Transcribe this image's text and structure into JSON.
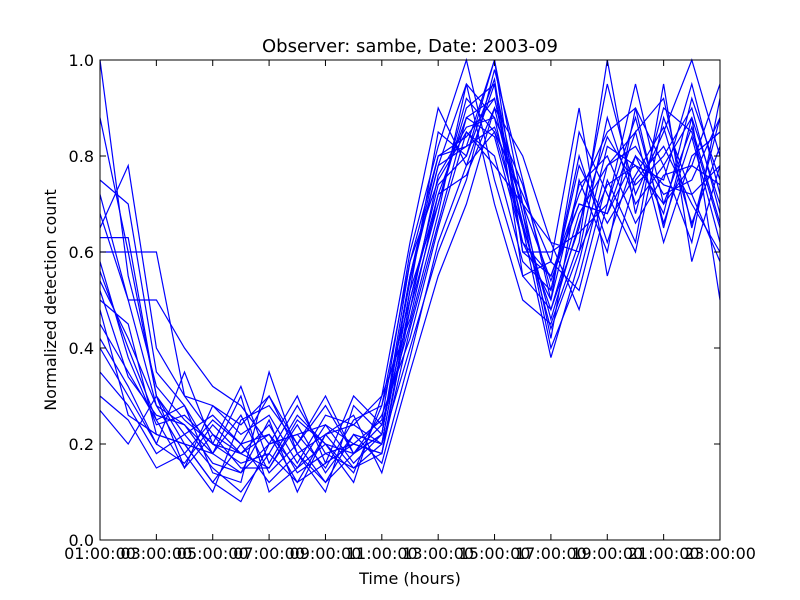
{
  "chart_data": {
    "type": "line",
    "title": "Observer: sambe, Date: 2003-09",
    "xlabel": "Time (hours)",
    "ylabel": "Normalized detection count",
    "xlim": [
      1,
      23
    ],
    "ylim": [
      0.0,
      1.0
    ],
    "x_tick_values": [
      1,
      3,
      5,
      7,
      9,
      11,
      13,
      15,
      17,
      19,
      21,
      23
    ],
    "x_tick_labels": [
      "01:00:00",
      "03:00:00",
      "05:00:00",
      "07:00:00",
      "09:00:00",
      "11:00:00",
      "13:00:00",
      "15:00:00",
      "17:00:00",
      "19:00:00",
      "21:00:00",
      "23:00:00"
    ],
    "y_tick_values": [
      0.0,
      0.2,
      0.4,
      0.6,
      0.8,
      1.0
    ],
    "y_tick_labels": [
      "0.0",
      "0.2",
      "0.4",
      "0.6",
      "0.8",
      "1.0"
    ],
    "grid": false,
    "legend": "none",
    "line_color": "#0000ff",
    "x": [
      1,
      2,
      3,
      4,
      5,
      6,
      7,
      8,
      9,
      10,
      11,
      12,
      13,
      14,
      15,
      16,
      17,
      18,
      19,
      20,
      21,
      22,
      23
    ],
    "series": [
      {
        "values": [
          1.0,
          0.55,
          0.32,
          0.25,
          0.2,
          0.18,
          0.22,
          0.15,
          0.2,
          0.18,
          0.22,
          0.55,
          0.78,
          0.95,
          0.88,
          0.62,
          0.55,
          0.72,
          0.85,
          0.9,
          0.78,
          0.88,
          0.7
        ]
      },
      {
        "values": [
          0.88,
          0.6,
          0.3,
          0.22,
          0.15,
          0.1,
          0.18,
          0.12,
          0.16,
          0.2,
          0.25,
          0.6,
          0.82,
          1.0,
          0.75,
          0.55,
          0.48,
          0.65,
          0.95,
          0.72,
          0.85,
          1.0,
          0.8
        ]
      },
      {
        "values": [
          0.75,
          0.7,
          0.35,
          0.28,
          0.18,
          0.14,
          0.25,
          0.1,
          0.22,
          0.15,
          0.18,
          0.48,
          0.7,
          0.9,
          0.95,
          0.68,
          0.4,
          0.55,
          0.78,
          0.85,
          0.92,
          0.65,
          0.88
        ]
      },
      {
        "values": [
          0.72,
          0.5,
          0.28,
          0.18,
          0.25,
          0.2,
          0.12,
          0.18,
          0.12,
          0.22,
          0.2,
          0.52,
          0.85,
          0.8,
          1.0,
          0.7,
          0.62,
          0.48,
          0.7,
          0.95,
          0.7,
          0.78,
          0.95
        ]
      },
      {
        "values": [
          0.63,
          0.63,
          0.3,
          0.2,
          0.12,
          0.08,
          0.2,
          0.22,
          0.15,
          0.25,
          0.28,
          0.58,
          0.75,
          0.85,
          0.8,
          0.58,
          0.52,
          0.8,
          0.62,
          0.8,
          0.68,
          0.92,
          0.75
        ]
      },
      {
        "values": [
          0.6,
          0.6,
          0.6,
          0.3,
          0.22,
          0.18,
          0.15,
          0.25,
          0.2,
          0.12,
          0.3,
          0.62,
          0.9,
          0.78,
          0.85,
          0.72,
          0.58,
          0.9,
          0.55,
          0.75,
          0.82,
          0.7,
          0.6
        ]
      },
      {
        "values": [
          0.56,
          0.4,
          0.25,
          0.15,
          0.28,
          0.24,
          0.3,
          0.2,
          0.28,
          0.18,
          0.24,
          0.45,
          0.68,
          0.95,
          0.7,
          0.5,
          0.45,
          0.62,
          1.0,
          0.68,
          0.9,
          0.85,
          0.65
        ]
      },
      {
        "values": [
          0.5,
          0.45,
          0.22,
          0.2,
          0.18,
          0.3,
          0.1,
          0.15,
          0.24,
          0.2,
          0.18,
          0.5,
          0.72,
          0.88,
          0.92,
          0.65,
          0.38,
          0.58,
          0.82,
          0.78,
          0.75,
          0.95,
          0.72
        ]
      },
      {
        "values": [
          0.45,
          0.35,
          0.25,
          0.28,
          0.14,
          0.12,
          0.35,
          0.18,
          0.1,
          0.28,
          0.22,
          0.55,
          0.8,
          0.82,
          1.0,
          0.6,
          0.55,
          0.7,
          0.68,
          0.85,
          0.62,
          0.8,
          0.85
        ]
      },
      {
        "values": [
          0.4,
          0.3,
          0.2,
          0.35,
          0.2,
          0.16,
          0.18,
          0.28,
          0.18,
          0.15,
          0.2,
          0.4,
          0.6,
          0.75,
          0.98,
          0.75,
          0.5,
          0.85,
          0.72,
          0.6,
          0.88,
          0.72,
          0.58
        ]
      },
      {
        "values": [
          0.35,
          0.28,
          0.18,
          0.22,
          0.26,
          0.2,
          0.22,
          0.12,
          0.22,
          0.26,
          0.14,
          0.35,
          0.55,
          0.7,
          0.9,
          0.8,
          0.62,
          0.6,
          0.88,
          0.7,
          0.78,
          0.62,
          0.92
        ]
      },
      {
        "values": [
          0.3,
          0.25,
          0.15,
          0.18,
          0.1,
          0.25,
          0.28,
          0.2,
          0.3,
          0.18,
          0.26,
          0.42,
          0.65,
          0.85,
          0.78,
          0.7,
          0.42,
          0.75,
          0.6,
          0.9,
          0.65,
          0.88,
          0.5
        ]
      },
      {
        "values": [
          0.27,
          0.2,
          0.3,
          0.15,
          0.22,
          0.15,
          0.15,
          0.24,
          0.14,
          0.22,
          0.16,
          0.38,
          0.62,
          0.78,
          0.95,
          0.55,
          0.58,
          0.52,
          0.75,
          0.62,
          0.95,
          0.58,
          0.78
        ]
      },
      {
        "values": [
          0.65,
          0.78,
          0.4,
          0.3,
          0.28,
          0.22,
          0.26,
          0.16,
          0.26,
          0.24,
          0.2,
          0.52,
          0.7,
          0.92,
          0.85,
          0.65,
          0.48,
          0.68,
          0.78,
          0.82,
          0.72,
          0.75,
          0.88
        ]
      },
      {
        "values": [
          0.52,
          0.34,
          0.26,
          0.24,
          0.16,
          0.14,
          0.2,
          0.3,
          0.16,
          0.3,
          0.24,
          0.48,
          0.76,
          0.86,
          0.88,
          0.74,
          0.52,
          0.78,
          0.66,
          0.76,
          0.86,
          0.66,
          0.82
        ]
      },
      {
        "values": [
          0.68,
          0.5,
          0.5,
          0.4,
          0.32,
          0.28,
          0.2,
          0.22,
          0.24,
          0.16,
          0.22,
          0.58,
          0.8,
          0.84,
          0.92,
          0.68,
          0.46,
          0.66,
          0.84,
          0.74,
          0.8,
          0.9,
          0.68
        ]
      },
      {
        "values": [
          0.58,
          0.38,
          0.24,
          0.26,
          0.2,
          0.32,
          0.16,
          0.26,
          0.2,
          0.14,
          0.28,
          0.5,
          0.74,
          0.8,
          0.96,
          0.6,
          0.6,
          0.64,
          0.7,
          0.88,
          0.66,
          0.84,
          0.62
        ]
      },
      {
        "values": [
          0.42,
          0.32,
          0.2,
          0.16,
          0.24,
          0.18,
          0.24,
          0.14,
          0.18,
          0.2,
          0.18,
          0.44,
          0.66,
          0.88,
          0.84,
          0.62,
          0.5,
          0.74,
          0.8,
          0.66,
          0.76,
          0.78,
          0.74
        ]
      },
      {
        "values": [
          0.48,
          0.26,
          0.22,
          0.2,
          0.12,
          0.2,
          0.3,
          0.18,
          0.22,
          0.24,
          0.3,
          0.46,
          0.72,
          0.76,
          0.9,
          0.66,
          0.44,
          0.6,
          0.74,
          0.78,
          0.7,
          0.86,
          0.66
        ]
      },
      {
        "values": [
          0.54,
          0.42,
          0.28,
          0.24,
          0.18,
          0.26,
          0.14,
          0.2,
          0.12,
          0.18,
          0.22,
          0.54,
          0.78,
          0.82,
          0.86,
          0.7,
          0.54,
          0.7,
          0.68,
          0.8,
          0.74,
          0.72,
          0.78
        ]
      }
    ]
  }
}
